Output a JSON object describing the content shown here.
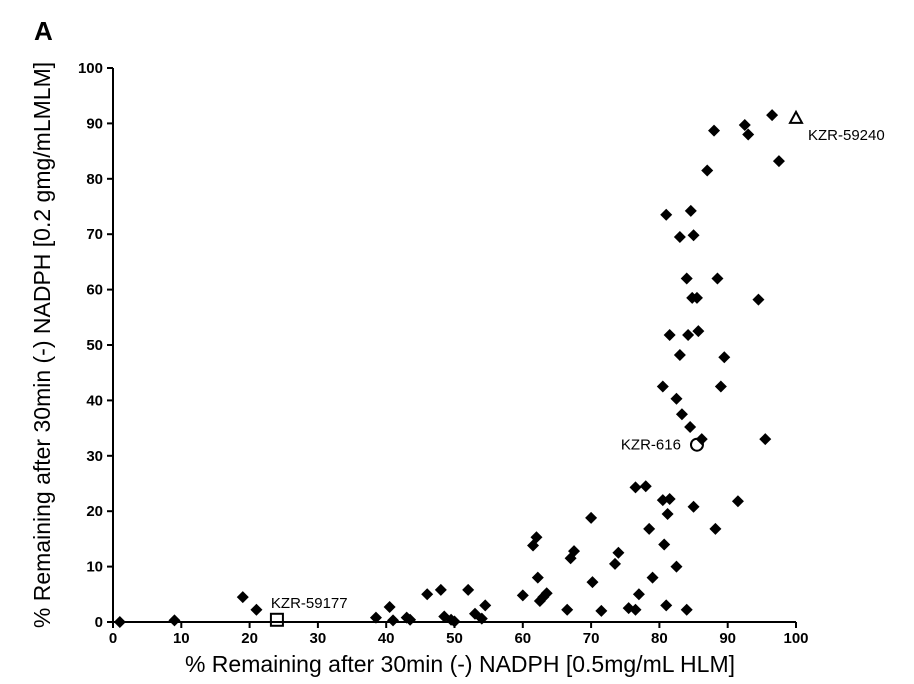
{
  "panel_label": "A",
  "chart_data": {
    "type": "scatter",
    "xlabel": "% Remaining after 30min (-) NADPH [0.5mg/mL HLM]",
    "ylabel": "% Remaining after 30min (-) NADPH [0.2 gmg/mLMLM]",
    "xlim": [
      0,
      100
    ],
    "ylim": [
      0,
      100
    ],
    "x_ticks": [
      0,
      10,
      20,
      30,
      40,
      50,
      60,
      70,
      80,
      90,
      100
    ],
    "y_ticks": [
      0,
      10,
      20,
      30,
      40,
      50,
      60,
      70,
      80,
      90,
      100
    ],
    "grid": false,
    "points": [
      {
        "x": 1,
        "y": 0
      },
      {
        "x": 9,
        "y": 0.3
      },
      {
        "x": 19,
        "y": 4.5
      },
      {
        "x": 21,
        "y": 2.2
      },
      {
        "x": 38.5,
        "y": 0.8
      },
      {
        "x": 40.5,
        "y": 2.7
      },
      {
        "x": 41,
        "y": 0.3
      },
      {
        "x": 43,
        "y": 0.8
      },
      {
        "x": 43.5,
        "y": 0.4
      },
      {
        "x": 46,
        "y": 5
      },
      {
        "x": 48,
        "y": 5.8
      },
      {
        "x": 48.5,
        "y": 1
      },
      {
        "x": 49.5,
        "y": 0.4
      },
      {
        "x": 50,
        "y": 0.1
      },
      {
        "x": 52,
        "y": 5.8
      },
      {
        "x": 53,
        "y": 1.5
      },
      {
        "x": 54,
        "y": 0.6
      },
      {
        "x": 54.5,
        "y": 3
      },
      {
        "x": 60,
        "y": 4.8
      },
      {
        "x": 61.5,
        "y": 13.8
      },
      {
        "x": 62,
        "y": 15.3
      },
      {
        "x": 62.2,
        "y": 8
      },
      {
        "x": 62.5,
        "y": 3.8
      },
      {
        "x": 63,
        "y": 4.5
      },
      {
        "x": 63.5,
        "y": 5.2
      },
      {
        "x": 66.5,
        "y": 2.2
      },
      {
        "x": 67,
        "y": 11.5
      },
      {
        "x": 67.5,
        "y": 12.8
      },
      {
        "x": 70,
        "y": 18.8
      },
      {
        "x": 70.2,
        "y": 7.2
      },
      {
        "x": 71.5,
        "y": 2
      },
      {
        "x": 73.5,
        "y": 10.5
      },
      {
        "x": 74,
        "y": 12.5
      },
      {
        "x": 75.5,
        "y": 2.5
      },
      {
        "x": 76.5,
        "y": 2.2
      },
      {
        "x": 76.5,
        "y": 24.3
      },
      {
        "x": 77,
        "y": 5
      },
      {
        "x": 78,
        "y": 24.5
      },
      {
        "x": 78.5,
        "y": 16.8
      },
      {
        "x": 79,
        "y": 8
      },
      {
        "x": 80.5,
        "y": 22
      },
      {
        "x": 80.5,
        "y": 42.5
      },
      {
        "x": 80.7,
        "y": 14
      },
      {
        "x": 81,
        "y": 3
      },
      {
        "x": 81,
        "y": 73.5
      },
      {
        "x": 81.2,
        "y": 19.5
      },
      {
        "x": 81.5,
        "y": 22.2
      },
      {
        "x": 81.5,
        "y": 51.8
      },
      {
        "x": 82.5,
        "y": 10
      },
      {
        "x": 82.5,
        "y": 40.3
      },
      {
        "x": 83,
        "y": 69.5
      },
      {
        "x": 83,
        "y": 48.2
      },
      {
        "x": 83.3,
        "y": 37.5
      },
      {
        "x": 84,
        "y": 2.2
      },
      {
        "x": 84,
        "y": 62
      },
      {
        "x": 84.2,
        "y": 51.8
      },
      {
        "x": 84.5,
        "y": 35.2
      },
      {
        "x": 84.6,
        "y": 74.2
      },
      {
        "x": 84.8,
        "y": 58.5
      },
      {
        "x": 85,
        "y": 69.8
      },
      {
        "x": 85,
        "y": 20.8
      },
      {
        "x": 85.5,
        "y": 58.5
      },
      {
        "x": 85.7,
        "y": 52.5
      },
      {
        "x": 86.2,
        "y": 33
      },
      {
        "x": 87,
        "y": 81.5
      },
      {
        "x": 88,
        "y": 88.7
      },
      {
        "x": 88.2,
        "y": 16.8
      },
      {
        "x": 88.5,
        "y": 62
      },
      {
        "x": 89,
        "y": 42.5
      },
      {
        "x": 89.5,
        "y": 47.8
      },
      {
        "x": 91.5,
        "y": 21.8
      },
      {
        "x": 92.5,
        "y": 89.7
      },
      {
        "x": 93,
        "y": 88
      },
      {
        "x": 94.5,
        "y": 58.2
      },
      {
        "x": 95.5,
        "y": 33
      },
      {
        "x": 96.5,
        "y": 91.5
      },
      {
        "x": 97.5,
        "y": 83.2
      }
    ],
    "highlighted": [
      {
        "label": "KZR-59177",
        "x": 24,
        "y": 0.4,
        "marker": "square"
      },
      {
        "label": "KZR-616",
        "x": 85.5,
        "y": 32,
        "marker": "circle"
      },
      {
        "label": "KZR-59240",
        "x": 100,
        "y": 91,
        "marker": "triangle"
      }
    ]
  }
}
